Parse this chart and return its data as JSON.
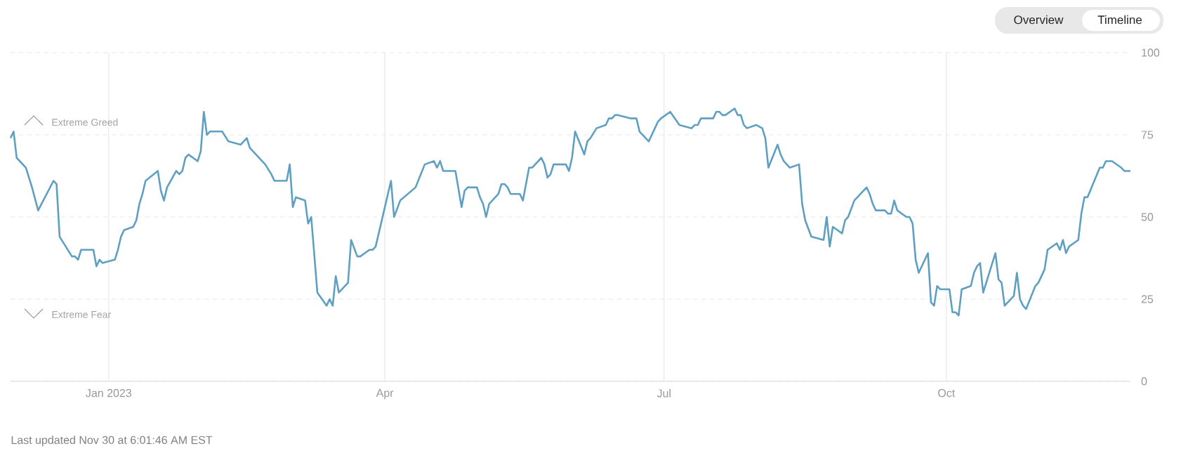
{
  "chart_data": {
    "type": "line",
    "color": "#5fa0c2",
    "grid": true,
    "annotations": [
      "Extreme Greed",
      "Extreme Fear",
      "Last updated Nov 30 at 6:01:46 AM EST",
      "Overview",
      "Timeline"
    ],
    "xlim": [
      "2022-11-30",
      "2023-11-30"
    ],
    "xticks": [
      {
        "value": "2023-01-01",
        "label": "Jan 2023"
      },
      {
        "value": "2023-04-01",
        "label": "Apr"
      },
      {
        "value": "2023-07-01",
        "label": "Jul"
      },
      {
        "value": "2023-10-01",
        "label": "Oct"
      }
    ],
    "ylim": [
      0,
      100
    ],
    "yticks": [
      0,
      25,
      50,
      75,
      100
    ],
    "x": [
      "2022-11-30",
      "2022-12-01",
      "2022-12-02",
      "2022-12-05",
      "2022-12-07",
      "2022-12-09",
      "2022-12-14",
      "2022-12-15",
      "2022-12-16",
      "2022-12-20",
      "2022-12-21",
      "2022-12-22",
      "2022-12-23",
      "2022-12-27",
      "2022-12-28",
      "2022-12-29",
      "2022-12-30",
      "2023-01-03",
      "2023-01-04",
      "2023-01-05",
      "2023-01-06",
      "2023-01-09",
      "2023-01-10",
      "2023-01-11",
      "2023-01-12",
      "2023-01-13",
      "2023-01-17",
      "2023-01-18",
      "2023-01-19",
      "2023-01-20",
      "2023-01-23",
      "2023-01-24",
      "2023-01-25",
      "2023-01-26",
      "2023-01-27",
      "2023-01-30",
      "2023-01-31",
      "2023-02-01",
      "2023-02-02",
      "2023-02-03",
      "2023-02-06",
      "2023-02-07",
      "2023-02-09",
      "2023-02-13",
      "2023-02-14",
      "2023-02-15",
      "2023-02-16",
      "2023-02-21",
      "2023-02-23",
      "2023-02-24",
      "2023-02-27",
      "2023-02-28",
      "2023-03-01",
      "2023-03-02",
      "2023-03-03",
      "2023-03-06",
      "2023-03-07",
      "2023-03-08",
      "2023-03-10",
      "2023-03-13",
      "2023-03-14",
      "2023-03-15",
      "2023-03-16",
      "2023-03-17",
      "2023-03-20",
      "2023-03-21",
      "2023-03-23",
      "2023-03-24",
      "2023-03-27",
      "2023-03-28",
      "2023-03-29",
      "2023-04-03",
      "2023-04-04",
      "2023-04-06",
      "2023-04-11",
      "2023-04-14",
      "2023-04-17",
      "2023-04-18",
      "2023-04-19",
      "2023-04-20",
      "2023-04-21",
      "2023-04-24",
      "2023-04-26",
      "2023-04-27",
      "2023-04-28",
      "2023-05-01",
      "2023-05-02",
      "2023-05-03",
      "2023-05-04",
      "2023-05-05",
      "2023-05-08",
      "2023-05-09",
      "2023-05-10",
      "2023-05-11",
      "2023-05-12",
      "2023-05-15",
      "2023-05-16",
      "2023-05-18",
      "2023-05-19",
      "2023-05-22",
      "2023-05-23",
      "2023-05-24",
      "2023-05-25",
      "2023-05-26",
      "2023-05-30",
      "2023-05-31",
      "2023-06-01",
      "2023-06-02",
      "2023-06-05",
      "2023-06-06",
      "2023-06-07",
      "2023-06-09",
      "2023-06-12",
      "2023-06-13",
      "2023-06-14",
      "2023-06-15",
      "2023-06-16",
      "2023-06-20",
      "2023-06-22",
      "2023-06-23",
      "2023-06-26",
      "2023-06-27",
      "2023-06-28",
      "2023-06-29",
      "2023-06-30",
      "2023-07-03",
      "2023-07-06",
      "2023-07-10",
      "2023-07-11",
      "2023-07-12",
      "2023-07-13",
      "2023-07-14",
      "2023-07-17",
      "2023-07-18",
      "2023-07-19",
      "2023-07-20",
      "2023-07-21",
      "2023-07-24",
      "2023-07-25",
      "2023-07-26",
      "2023-07-27",
      "2023-07-28",
      "2023-07-31",
      "2023-08-02",
      "2023-08-03",
      "2023-08-04",
      "2023-08-07",
      "2023-08-08",
      "2023-08-09",
      "2023-08-10",
      "2023-08-11",
      "2023-08-14",
      "2023-08-15",
      "2023-08-16",
      "2023-08-18",
      "2023-08-22",
      "2023-08-23",
      "2023-08-24",
      "2023-08-25",
      "2023-08-28",
      "2023-08-29",
      "2023-08-30",
      "2023-09-01",
      "2023-09-05",
      "2023-09-06",
      "2023-09-07",
      "2023-09-08",
      "2023-09-11",
      "2023-09-12",
      "2023-09-13",
      "2023-09-14",
      "2023-09-15",
      "2023-09-18",
      "2023-09-19",
      "2023-09-20",
      "2023-09-21",
      "2023-09-22",
      "2023-09-25",
      "2023-09-26",
      "2023-09-27",
      "2023-09-28",
      "2023-09-29",
      "2023-10-02",
      "2023-10-03",
      "2023-10-04",
      "2023-10-05",
      "2023-10-06",
      "2023-10-09",
      "2023-10-10",
      "2023-10-11",
      "2023-10-12",
      "2023-10-13",
      "2023-10-17",
      "2023-10-18",
      "2023-10-19",
      "2023-10-20",
      "2023-10-23",
      "2023-10-24",
      "2023-10-25",
      "2023-10-26",
      "2023-10-27",
      "2023-10-30",
      "2023-10-31",
      "2023-11-02",
      "2023-11-03",
      "2023-11-06",
      "2023-11-07",
      "2023-11-08",
      "2023-11-09",
      "2023-11-10",
      "2023-11-13",
      "2023-11-14",
      "2023-11-15",
      "2023-11-16",
      "2023-11-20",
      "2023-11-21",
      "2023-11-22",
      "2023-11-24",
      "2023-11-27",
      "2023-11-28",
      "2023-11-30"
    ],
    "values": [
      74,
      76,
      68,
      65,
      59,
      52,
      61,
      60,
      44,
      38,
      38,
      37,
      40,
      40,
      35,
      37,
      36,
      37,
      40,
      44,
      46,
      47,
      49,
      54,
      57,
      61,
      64,
      58,
      55,
      59,
      64,
      63,
      64,
      68,
      69,
      67,
      70,
      82,
      75,
      76,
      76,
      76,
      73,
      72,
      73,
      74,
      71,
      66,
      63,
      61,
      61,
      61,
      66,
      53,
      56,
      55,
      48,
      50,
      27,
      23,
      25,
      23,
      32,
      27,
      30,
      43,
      38,
      38,
      40,
      40,
      41,
      61,
      50,
      55,
      59,
      66,
      67,
      65,
      67,
      64,
      64,
      64,
      53,
      58,
      59,
      59,
      56,
      54,
      50,
      54,
      57,
      60,
      60,
      59,
      57,
      57,
      55,
      65,
      65,
      68,
      66,
      62,
      63,
      66,
      66,
      64,
      68,
      76,
      69,
      73,
      74,
      77,
      78,
      80,
      80,
      81,
      81,
      80,
      80,
      76,
      73,
      75,
      77,
      79,
      80,
      82,
      78,
      77,
      78,
      78,
      80,
      80,
      80,
      82,
      82,
      81,
      81,
      83,
      81,
      81,
      78,
      77,
      78,
      77,
      74,
      65,
      72,
      69,
      67,
      66,
      65,
      66,
      54,
      49,
      44,
      43,
      50,
      41,
      47,
      45,
      49,
      50,
      55,
      59,
      57,
      54,
      52,
      52,
      51,
      51,
      55,
      52,
      50,
      50,
      48,
      37,
      33,
      39,
      24,
      23,
      29,
      28,
      28,
      21,
      21,
      20,
      28,
      29,
      33,
      35,
      36,
      27,
      39,
      31,
      30,
      23,
      26,
      33,
      25,
      23,
      22,
      29,
      30,
      34,
      40,
      42,
      40,
      43,
      39,
      41,
      43,
      51,
      56,
      56,
      65,
      65,
      67,
      67,
      65,
      64,
      64
    ]
  }
}
